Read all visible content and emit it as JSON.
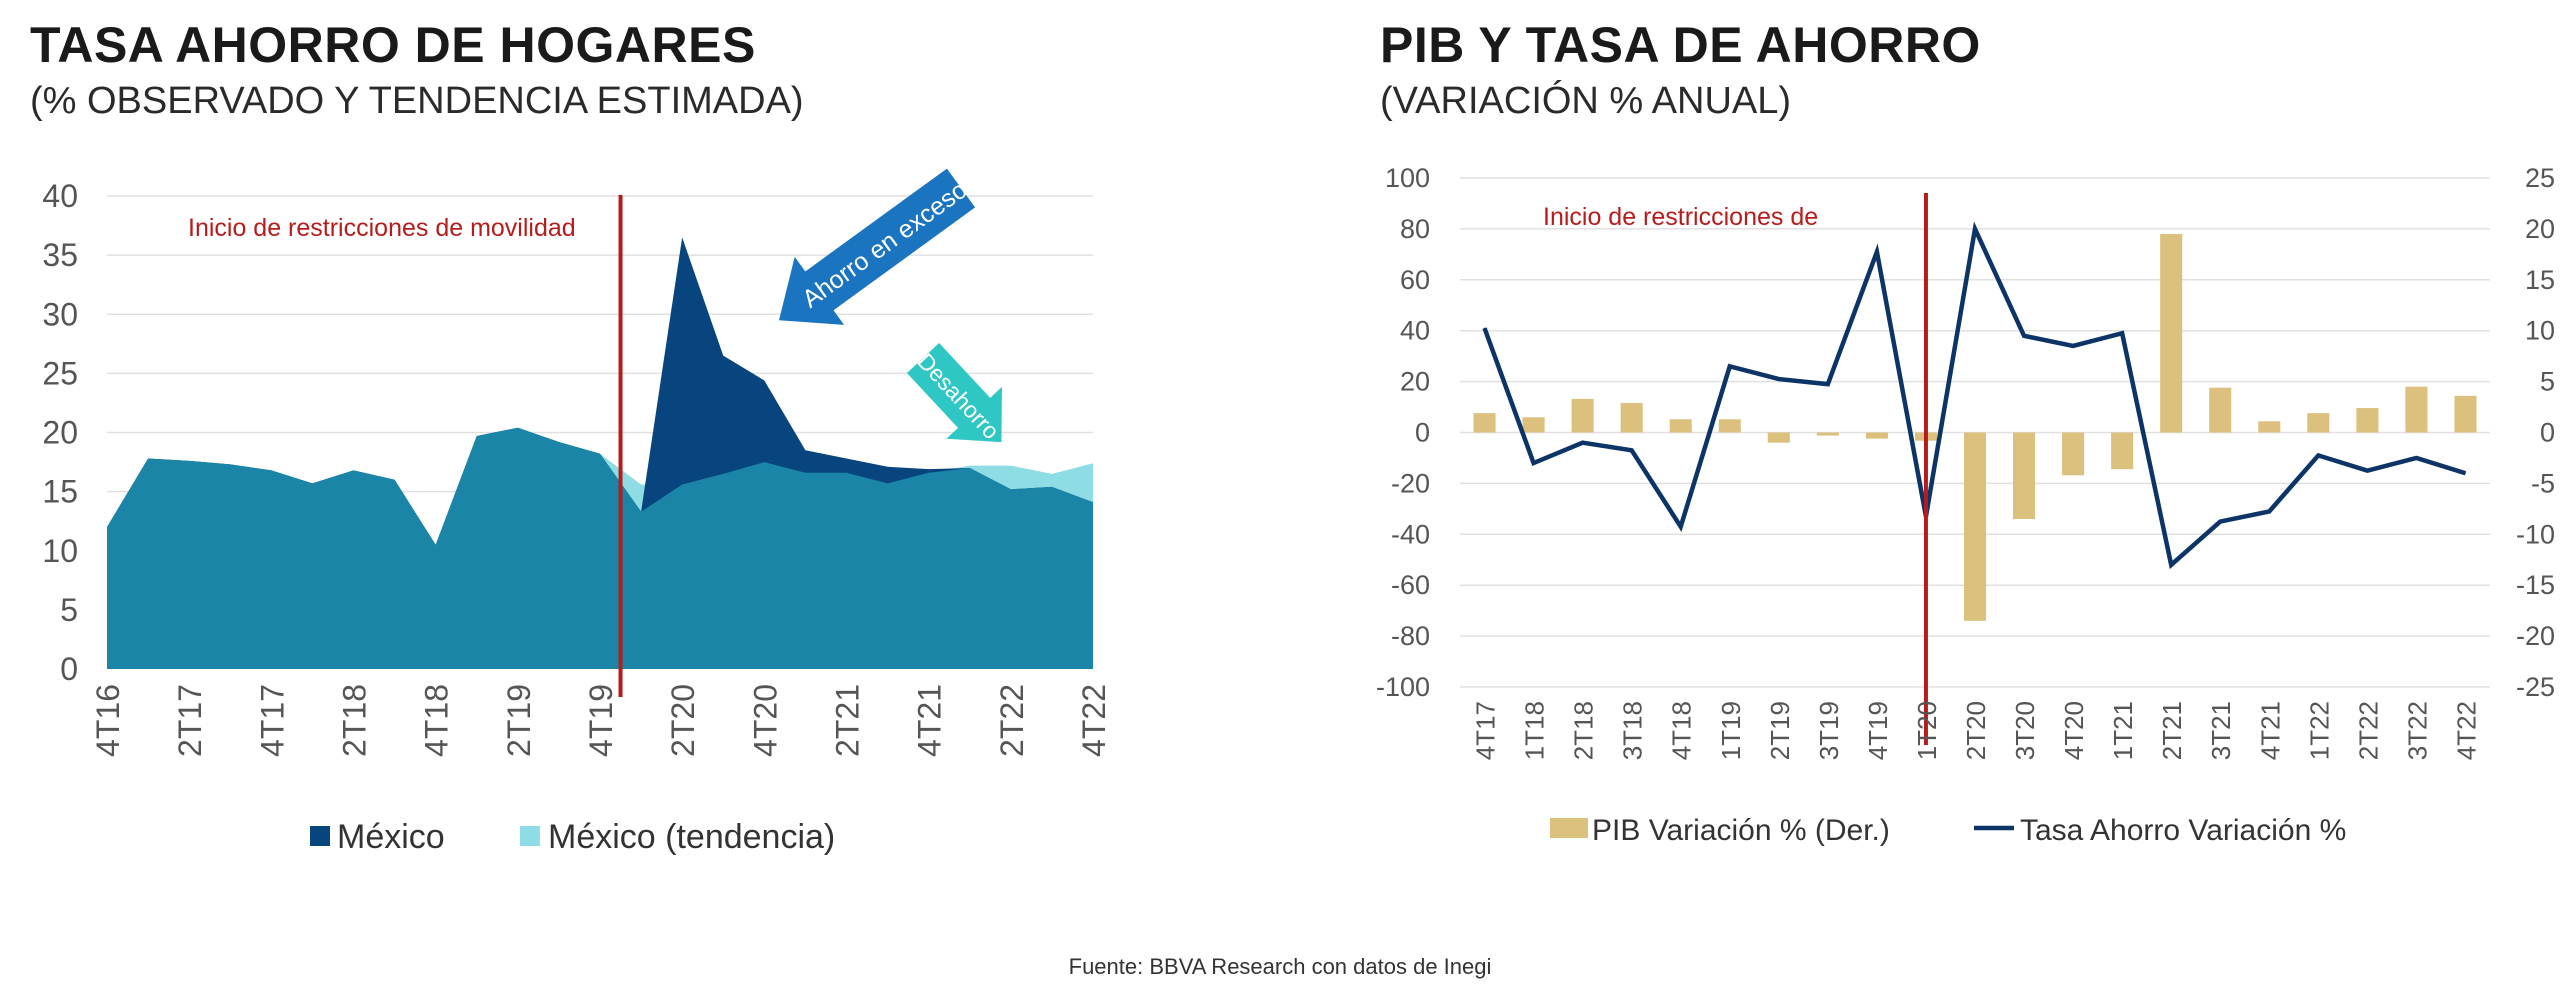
{
  "colors": {
    "mexico": "#1a85a6",
    "excess": "#08457e",
    "trend": "#8fdde4",
    "restriction_line": "#b71c1c",
    "arrow_excess": "#1b74c0",
    "arrow_desahorro": "#2ec7c4",
    "gdp_bars": "#dcc07d",
    "saving_line": "#0c3466",
    "grid": "#e0e0e0"
  },
  "left_chart": {
    "title": "TASA AHORRO DE HOGARES",
    "subtitle": "(% OBSERVADO Y TENDENCIA ESTIMADA)",
    "annotation": "Inicio de restricciones de movilidad",
    "arrow_excess_label": "Ahorro en exceso",
    "arrow_desahorro_label": "Desahorro",
    "legend": [
      "México",
      "México (tendencia)"
    ]
  },
  "right_chart": {
    "title": "PIB Y TASA DE AHORRO",
    "subtitle": "(VARIACIÓN % ANUAL)",
    "annotation": "Inicio de restricciones de",
    "legend": [
      "PIB Variación % (Der.)",
      "Tasa Ahorro Variación %"
    ]
  },
  "source": "Fuente: BBVA Research con datos de Inegi",
  "chart_data": [
    {
      "type": "area",
      "title": "TASA AHORRO DE HOGARES",
      "subtitle": "(% OBSERVADO Y TENDENCIA ESTIMADA)",
      "x": [
        "4T16",
        "1T17",
        "2T17",
        "3T17",
        "4T17",
        "1T18",
        "2T18",
        "3T18",
        "4T18",
        "1T19",
        "2T19",
        "3T19",
        "4T19",
        "1T20",
        "2T20",
        "3T20",
        "4T20",
        "1T21",
        "2T21",
        "3T21",
        "4T21",
        "1T22",
        "2T22",
        "3T22",
        "4T22"
      ],
      "tick_labels": [
        "4T16",
        "2T17",
        "4T17",
        "2T18",
        "4T18",
        "2T19",
        "4T19",
        "2T20",
        "4T20",
        "2T21",
        "4T21",
        "2T22",
        "4T22"
      ],
      "series": [
        {
          "name": "México",
          "values": [
            12.0,
            17.8,
            17.6,
            17.3,
            16.8,
            15.7,
            16.8,
            16.0,
            10.5,
            19.7,
            20.4,
            19.2,
            18.2,
            13.3,
            36.5,
            26.5,
            24.4,
            18.5,
            17.8,
            17.1,
            16.9,
            17.0,
            15.2,
            15.4,
            14.1
          ]
        },
        {
          "name": "México (tendencia)",
          "values": [
            12.0,
            17.8,
            17.6,
            17.3,
            16.8,
            15.7,
            16.8,
            16.0,
            10.5,
            19.7,
            20.4,
            19.2,
            18.2,
            15.6,
            15.6,
            16.5,
            17.5,
            16.6,
            16.6,
            15.7,
            16.6,
            17.2,
            17.2,
            16.5,
            17.4
          ]
        }
      ],
      "ylim": [
        0,
        40
      ],
      "yticks": [
        0,
        5,
        10,
        15,
        20,
        25,
        30,
        35,
        40
      ],
      "annotations": [
        "Inicio de restricciones de movilidad",
        "Ahorro en exceso",
        "Desahorro"
      ],
      "legend_position": "bottom"
    },
    {
      "type": "bar",
      "title": "PIB Y TASA DE AHORRO",
      "subtitle": "(VARIACIÓN % ANUAL)",
      "categories": [
        "4T17",
        "1T18",
        "2T18",
        "3T18",
        "4T18",
        "1T19",
        "2T19",
        "3T19",
        "4T19",
        "1T20",
        "2T20",
        "3T20",
        "4T20",
        "1T21",
        "2T21",
        "3T21",
        "4T21",
        "1T22",
        "2T22",
        "3T22",
        "4T22"
      ],
      "series": [
        {
          "name": "PIB Variación % (Der.)",
          "type": "bar",
          "axis": "right",
          "values": [
            1.9,
            1.5,
            3.3,
            2.9,
            1.3,
            1.3,
            -1.0,
            -0.3,
            -0.6,
            -0.8,
            -18.5,
            -8.5,
            -4.2,
            -3.6,
            19.5,
            4.4,
            1.1,
            1.9,
            2.4,
            4.5,
            3.6
          ]
        },
        {
          "name": "Tasa Ahorro Variación %",
          "type": "line",
          "axis": "left",
          "values": [
            41,
            -12,
            -4,
            -7,
            -37,
            26,
            21,
            19,
            71,
            -33,
            80,
            38,
            34,
            39,
            -52,
            -35,
            -31,
            -9,
            -15,
            -10,
            -16
          ]
        }
      ],
      "ylim_left": [
        -100,
        100
      ],
      "yticks_left": [
        -100,
        -80,
        -60,
        -40,
        -20,
        0,
        20,
        40,
        60,
        80,
        100
      ],
      "ylim_right": [
        -25,
        25
      ],
      "yticks_right": [
        -25,
        -20,
        -15,
        -10,
        -5,
        0,
        5,
        10,
        15,
        20,
        25
      ],
      "annotations": [
        "Inicio de restricciones de"
      ],
      "legend_position": "bottom"
    }
  ]
}
